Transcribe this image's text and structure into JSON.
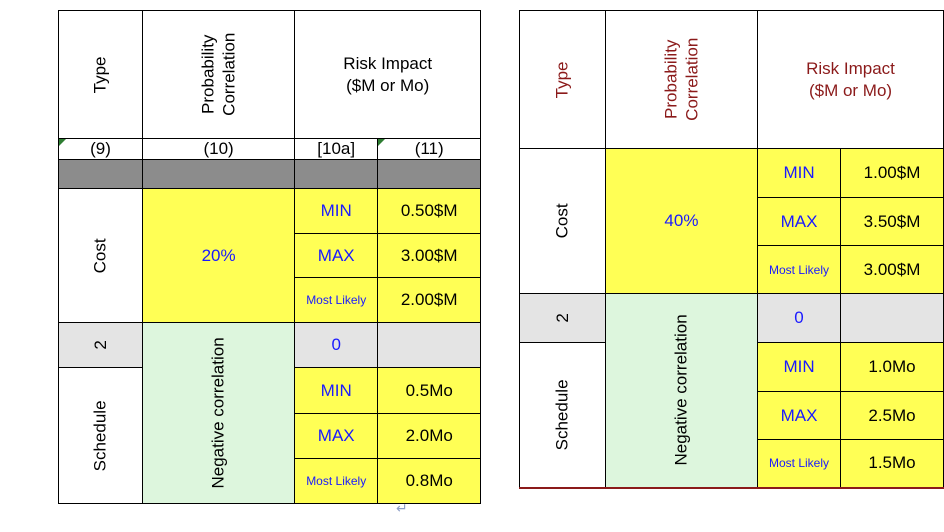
{
  "left_table": {
    "header": {
      "type": "Type",
      "probability_line1": "Probability",
      "probability_line2": "Correlation",
      "impact_line1": "Risk Impact",
      "impact_line2": "($M or Mo)"
    },
    "column_numbers": [
      "(9)",
      "(10)",
      "[10a]",
      "(11)"
    ],
    "cost": {
      "label": "Cost",
      "probability": "20%",
      "rows": [
        {
          "label": "MIN",
          "value": "0.50$M"
        },
        {
          "label": "MAX",
          "value": "3.00$M"
        },
        {
          "label": "Most Likely",
          "value": "2.00$M"
        }
      ]
    },
    "corr_row": {
      "index": "2",
      "correlation": "Negative correlation",
      "value": "0"
    },
    "schedule": {
      "label": "Schedule",
      "rows": [
        {
          "label": "MIN",
          "value": "0.5Mo"
        },
        {
          "label": "MAX",
          "value": "2.0Mo"
        },
        {
          "label": "Most Likely",
          "value": "0.8Mo"
        }
      ]
    }
  },
  "right_table": {
    "header": {
      "type": "Type",
      "probability_line1": "Probability",
      "probability_line2": "Correlation",
      "impact_line1": "Risk Impact",
      "impact_line2": "($M or Mo)"
    },
    "cost": {
      "label": "Cost",
      "probability": "40%",
      "rows": [
        {
          "label": "MIN",
          "value": "1.00$M"
        },
        {
          "label": "MAX",
          "value": "3.50$M"
        },
        {
          "label": "Most Likely",
          "value": "3.00$M"
        }
      ]
    },
    "corr_row": {
      "index": "2",
      "correlation": "Negative correlation",
      "value": "0"
    },
    "schedule": {
      "label": "Schedule",
      "rows": [
        {
          "label": "MIN",
          "value": "1.0Mo"
        },
        {
          "label": "MAX",
          "value": "2.5Mo"
        },
        {
          "label": "Most Likely",
          "value": "1.5Mo"
        }
      ]
    }
  },
  "paragraph_mark": "↵"
}
